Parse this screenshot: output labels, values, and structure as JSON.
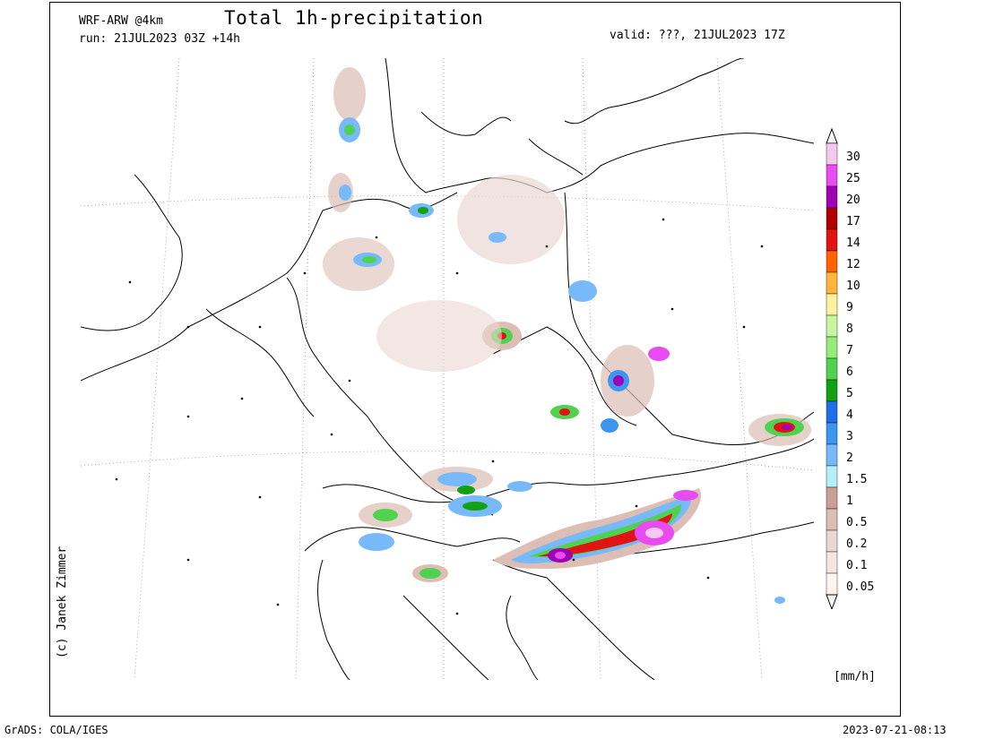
{
  "header": {
    "model": "WRF-ARW @4km",
    "title": "Total 1h-precipitation",
    "run": "run: 21JUL2023 03Z +14h",
    "valid": "valid: ???, 21JUL2023 17Z"
  },
  "credit": "(c) Janek Zimmer",
  "footer": {
    "software": "GrADS: COLA/IGES",
    "timestamp": "2023-07-21-08:13"
  },
  "legend": {
    "units": "[mm/h]",
    "levels": [
      {
        "label": "30",
        "color": "#f5c8f0"
      },
      {
        "label": "25",
        "color": "#e84cf0"
      },
      {
        "label": "20",
        "color": "#a000b4"
      },
      {
        "label": "17",
        "color": "#b00000"
      },
      {
        "label": "14",
        "color": "#e01414"
      },
      {
        "label": "12",
        "color": "#ff6400"
      },
      {
        "label": "10",
        "color": "#ffb43c"
      },
      {
        "label": "9",
        "color": "#fff0a0"
      },
      {
        "label": "8",
        "color": "#c8f5a0"
      },
      {
        "label": "7",
        "color": "#96eb78"
      },
      {
        "label": "6",
        "color": "#50d250"
      },
      {
        "label": "5",
        "color": "#14a014"
      },
      {
        "label": "4",
        "color": "#1e6ee6"
      },
      {
        "label": "3",
        "color": "#3c96f0"
      },
      {
        "label": "2",
        "color": "#78b9fa"
      },
      {
        "label": "1.5",
        "color": "#b4f0fa"
      },
      {
        "label": "1",
        "color": "#c8a096"
      },
      {
        "label": "0.5",
        "color": "#dcbeb4"
      },
      {
        "label": "0.2",
        "color": "#ebd7d2"
      },
      {
        "label": "0.1",
        "color": "#f5e6e1"
      },
      {
        "label": "0.05",
        "color": "#fff5f0"
      }
    ]
  }
}
